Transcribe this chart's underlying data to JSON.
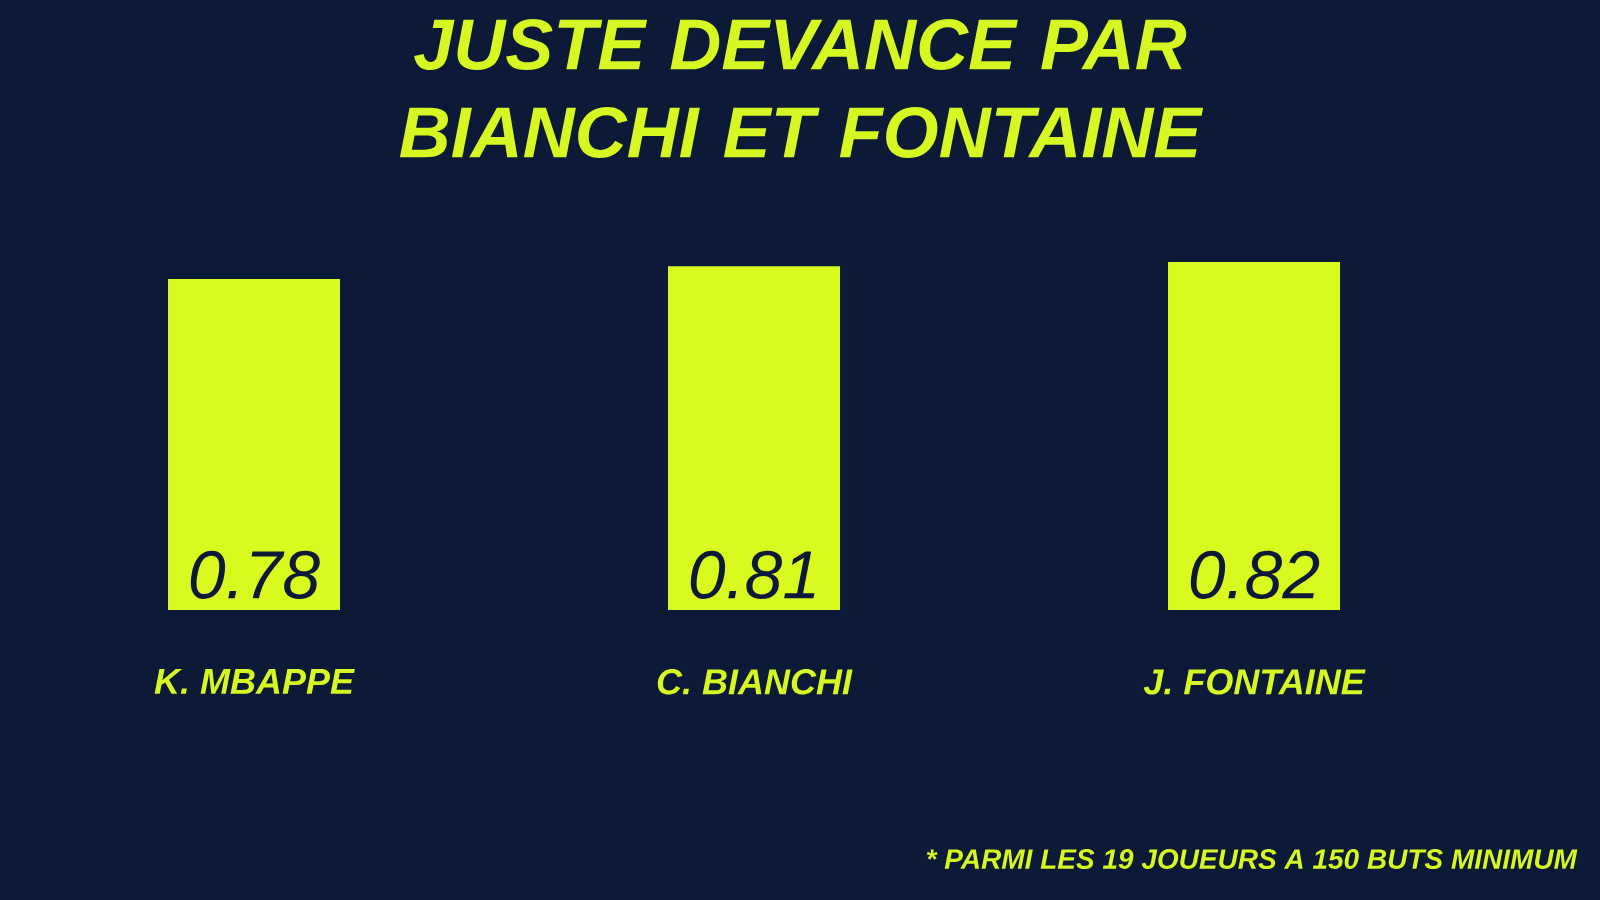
{
  "chart_data": {
    "type": "bar",
    "title": "JUSTE DEVANCE PAR BIANCHI ET FONTAINE",
    "categories": [
      "K. MBAPPE",
      "C. BIANCHI",
      "J. FONTAINE"
    ],
    "values": [
      0.78,
      0.81,
      0.82
    ],
    "color": "#d8fa1e",
    "data_labels": true,
    "tick_labels": "x",
    "annotations": [
      "* PARMI LES 19 JOUEURS A 150 BUTS MINIMUM"
    ]
  }
}
